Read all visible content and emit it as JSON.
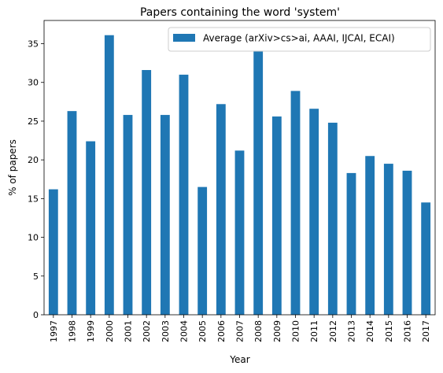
{
  "chart_data": {
    "type": "bar",
    "title": "Papers containing the word 'system'",
    "xlabel": "Year",
    "ylabel": "% of papers",
    "ylim": [
      0,
      38
    ],
    "yticks": [
      "0",
      "5",
      "10",
      "15",
      "20",
      "25",
      "30",
      "35"
    ],
    "grid": false,
    "legend_position": "top-right",
    "categories": [
      "1997",
      "1998",
      "1999",
      "2000",
      "2001",
      "2002",
      "2003",
      "2004",
      "2005",
      "2006",
      "2007",
      "2008",
      "2009",
      "2010",
      "2011",
      "2012",
      "2013",
      "2014",
      "2015",
      "2016",
      "2017"
    ],
    "series": [
      {
        "name": "Average (arXiv>cs>ai, AAAI, IJCAI, ECAI)",
        "color": "#1f77b4",
        "values": [
          16.2,
          26.3,
          22.4,
          36.1,
          25.8,
          31.6,
          25.8,
          31.0,
          16.5,
          27.2,
          21.2,
          34.1,
          25.6,
          28.9,
          26.6,
          24.8,
          18.3,
          20.5,
          19.5,
          18.6,
          14.5
        ]
      }
    ]
  }
}
